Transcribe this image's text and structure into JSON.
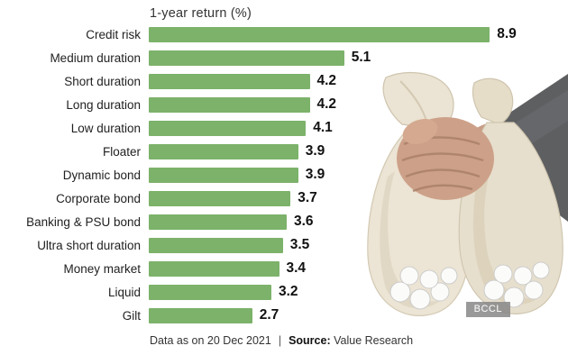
{
  "chart_data": {
    "type": "bar",
    "orientation": "horizontal",
    "title": "1-year return (%)",
    "categories": [
      "Credit risk",
      "Medium duration",
      "Short duration",
      "Long duration",
      "Low duration",
      "Floater",
      "Dynamic bond",
      "Corporate bond",
      "Banking & PSU bond",
      "Ultra short duration",
      "Money market",
      "Liquid",
      "Gilt"
    ],
    "values": [
      8.9,
      5.1,
      4.2,
      4.2,
      4.1,
      3.9,
      3.9,
      3.7,
      3.6,
      3.5,
      3.4,
      3.2,
      2.7
    ],
    "xlim": [
      0,
      9.5
    ],
    "bar_color": "#7cb26a",
    "grid": false,
    "legend": false,
    "value_labels": "end-of-bar, bold"
  },
  "footer": {
    "text": "Data as on 20 Dec 2021",
    "separator": "|",
    "source_label": "Source:",
    "source_value": "Value Research"
  },
  "photo": {
    "credit": "BCCL",
    "description": "hand gripping two cloth money bags stuffed with rolled notes"
  },
  "colors": {
    "bar": "#7cb26a",
    "title_text": "#333333",
    "label_text": "#1f1f1f",
    "value_text": "#111111",
    "background": "#ffffff"
  }
}
